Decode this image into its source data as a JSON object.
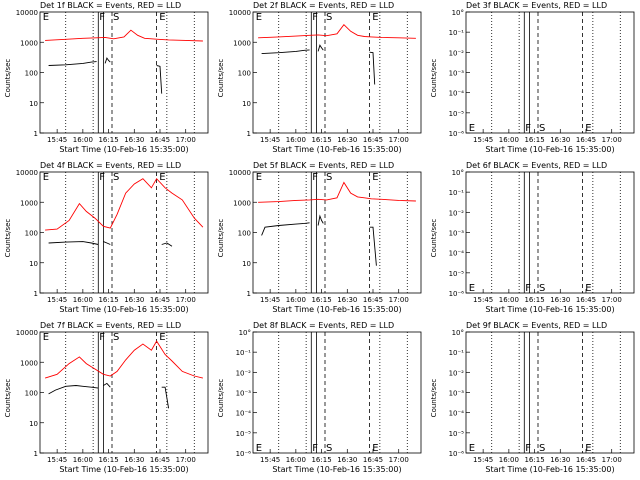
{
  "chart_data": [
    {
      "type": "line",
      "title": "Det 1f BLACK = Events, RED = LLD",
      "xlabel": "Start Time (10-Feb-16 15:35:00)",
      "ylabel": "Counts/sec",
      "yscale": "log",
      "ylim": [
        1,
        10000
      ],
      "ytick_labels": [
        "10000",
        "1000",
        "100",
        "10",
        "1"
      ],
      "xtick_labels": [
        "15:45",
        "16:00",
        "16:15",
        "16:30",
        "16:45",
        "17:00"
      ],
      "xlim": [
        "15:35",
        "17:13"
      ],
      "markers": [
        "E",
        "F",
        "S",
        "E"
      ],
      "series": [
        {
          "name": "RED = LLD",
          "color": "#ff0000",
          "x": [
            "15:38",
            "15:50",
            "16:00",
            "16:08",
            "16:13",
            "16:18",
            "16:24",
            "16:28",
            "16:32",
            "16:36",
            "16:40",
            "16:44",
            "16:50",
            "17:00",
            "17:10"
          ],
          "y": [
            1150,
            1250,
            1350,
            1400,
            1450,
            1300,
            1500,
            2500,
            1700,
            1350,
            1300,
            1250,
            1200,
            1150,
            1100
          ]
        },
        {
          "name": "BLACK = Events",
          "color": "#000000",
          "segments": [
            {
              "x": [
                "15:40",
                "15:50",
                "16:00",
                "16:05",
                "16:08"
              ],
              "y": [
                170,
                180,
                200,
                220,
                230
              ]
            },
            {
              "x": [
                "16:13",
                "16:14",
                "16:15",
                "16:16"
              ],
              "y": [
                200,
                300,
                250,
                220
              ]
            },
            {
              "x": [
                "16:43",
                "16:45",
                "16:46"
              ],
              "y": [
                170,
                160,
                20
              ]
            }
          ]
        }
      ]
    },
    {
      "type": "line",
      "title": "Det 2f BLACK = Events, RED = LLD",
      "xlabel": "Start Time (10-Feb-16 15:35:00)",
      "ylabel": "Counts/sec",
      "yscale": "log",
      "ylim": [
        1,
        10000
      ],
      "ytick_labels": [
        "10000",
        "1000",
        "100",
        "10",
        "1"
      ],
      "xtick_labels": [
        "15:45",
        "16:00",
        "16:15",
        "16:30",
        "16:45",
        "17:00"
      ],
      "xlim": [
        "15:35",
        "17:13"
      ],
      "markers": [
        "E",
        "F",
        "S",
        "E"
      ],
      "series": [
        {
          "name": "RED = LLD",
          "color": "#ff0000",
          "x": [
            "15:38",
            "15:50",
            "16:00",
            "16:08",
            "16:13",
            "16:18",
            "16:24",
            "16:28",
            "16:32",
            "16:36",
            "16:40",
            "16:44",
            "16:50",
            "17:00",
            "17:10"
          ],
          "y": [
            1400,
            1500,
            1600,
            1700,
            1750,
            1650,
            1900,
            3800,
            2300,
            1700,
            1550,
            1500,
            1450,
            1400,
            1350
          ]
        },
        {
          "name": "BLACK = Events",
          "color": "#000000",
          "segments": [
            {
              "x": [
                "15:40",
                "15:50",
                "16:00",
                "16:05",
                "16:08"
              ],
              "y": [
                420,
                450,
                500,
                540,
                560
              ]
            },
            {
              "x": [
                "16:13",
                "16:14",
                "16:15",
                "16:16"
              ],
              "y": [
                500,
                800,
                650,
                550
              ]
            },
            {
              "x": [
                "16:43",
                "16:45",
                "16:46"
              ],
              "y": [
                470,
                450,
                40
              ]
            }
          ]
        }
      ]
    },
    {
      "type": "line",
      "title": "Det 3f BLACK = Events, RED = LLD",
      "xlabel": "Start Time (10-Feb-16 15:35:00)",
      "ylabel": "Counts/sec",
      "yscale": "log",
      "ylim": [
        1,
        1e-06
      ],
      "ytick_labels": [
        "10°",
        "10⁻¹",
        "10⁻²",
        "10⁻³",
        "10⁻⁴",
        "10⁻⁵",
        "10⁻⁶"
      ],
      "xtick_labels": [
        "15:45",
        "16:00",
        "16:15",
        "16:30",
        "16:45",
        "17:00"
      ],
      "xlim": [
        "15:35",
        "17:13"
      ],
      "markers": [
        "E",
        "F",
        "S",
        "E"
      ],
      "series": []
    },
    {
      "type": "line",
      "title": "Det 4f BLACK = Events, RED = LLD",
      "xlabel": "Start Time (10-Feb-16 15:35:00)",
      "ylabel": "Counts/sec",
      "yscale": "log",
      "ylim": [
        1,
        10000
      ],
      "ytick_labels": [
        "10000",
        "1000",
        "100",
        "10",
        "1"
      ],
      "xtick_labels": [
        "15:45",
        "16:00",
        "16:15",
        "16:30",
        "16:45",
        "17:00"
      ],
      "xlim": [
        "15:35",
        "17:13"
      ],
      "markers": [
        "E",
        "F",
        "S",
        "E"
      ],
      "series": [
        {
          "name": "RED = LLD",
          "color": "#ff0000",
          "x": [
            "15:38",
            "15:45",
            "15:52",
            "15:58",
            "16:02",
            "16:07",
            "16:12",
            "16:16",
            "16:20",
            "16:25",
            "16:30",
            "16:35",
            "16:40",
            "16:43",
            "16:48",
            "16:52",
            "16:58",
            "17:05",
            "17:10"
          ],
          "y": [
            120,
            130,
            250,
            900,
            500,
            300,
            160,
            140,
            400,
            2000,
            4000,
            6000,
            3000,
            6000,
            3000,
            2000,
            1200,
            300,
            150
          ]
        },
        {
          "name": "BLACK = Events",
          "color": "#000000",
          "segments": [
            {
              "x": [
                "15:40",
                "15:50",
                "16:00",
                "16:05",
                "16:09"
              ],
              "y": [
                45,
                48,
                50,
                45,
                40
              ]
            },
            {
              "x": [
                "16:12",
                "16:14",
                "16:16"
              ],
              "y": [
                50,
                45,
                40
              ]
            },
            {
              "x": [
                "16:46",
                "16:49",
                "16:52"
              ],
              "y": [
                40,
                45,
                35
              ]
            }
          ]
        }
      ]
    },
    {
      "type": "line",
      "title": "Det 5f BLACK = Events, RED = LLD",
      "xlabel": "Start Time (10-Feb-16 15:35:00)",
      "ylabel": "Counts/sec",
      "yscale": "log",
      "ylim": [
        1,
        10000
      ],
      "ytick_labels": [
        "10000",
        "1000",
        "100",
        "10",
        "1"
      ],
      "xtick_labels": [
        "15:45",
        "16:00",
        "16:15",
        "16:30",
        "16:45",
        "17:00"
      ],
      "xlim": [
        "15:35",
        "17:13"
      ],
      "markers": [
        "E",
        "F",
        "S",
        "E"
      ],
      "series": [
        {
          "name": "RED = LLD",
          "color": "#ff0000",
          "x": [
            "15:38",
            "15:50",
            "16:00",
            "16:08",
            "16:13",
            "16:18",
            "16:24",
            "16:28",
            "16:32",
            "16:36",
            "16:40",
            "16:44",
            "16:50",
            "17:00",
            "17:10"
          ],
          "y": [
            1000,
            1050,
            1150,
            1200,
            1250,
            1200,
            1400,
            4500,
            2000,
            1500,
            1400,
            1300,
            1250,
            1150,
            1100
          ]
        },
        {
          "name": "BLACK = Events",
          "color": "#000000",
          "segments": [
            {
              "x": [
                "15:40",
                "15:42",
                "15:50",
                "16:00",
                "16:05",
                "16:08"
              ],
              "y": [
                80,
                150,
                170,
                190,
                200,
                210
              ]
            },
            {
              "x": [
                "16:13",
                "16:14",
                "16:15",
                "16:16"
              ],
              "y": [
                170,
                350,
                250,
                200
              ]
            },
            {
              "x": [
                "16:43",
                "16:45",
                "16:47"
              ],
              "y": [
                150,
                150,
                8
              ]
            }
          ]
        }
      ]
    },
    {
      "type": "line",
      "title": "Det 6f BLACK = Events, RED = LLD",
      "xlabel": "Start Time (10-Feb-16 15:35:00)",
      "ylabel": "Counts/sec",
      "yscale": "log",
      "ylim": [
        1,
        1e-06
      ],
      "ytick_labels": [
        "10°",
        "10⁻¹",
        "10⁻²",
        "10⁻³",
        "10⁻⁴",
        "10⁻⁵",
        "10⁻⁶"
      ],
      "xtick_labels": [
        "15:45",
        "16:00",
        "16:15",
        "16:30",
        "16:45",
        "17:00"
      ],
      "xlim": [
        "15:35",
        "17:13"
      ],
      "markers": [
        "E",
        "F",
        "S",
        "E"
      ],
      "series": []
    },
    {
      "type": "line",
      "title": "Det 7f BLACK = Events, RED = LLD",
      "xlabel": "Start Time (10-Feb-16 15:35:00)",
      "ylabel": "Counts/sec",
      "yscale": "log",
      "ylim": [
        1,
        10000
      ],
      "ytick_labels": [
        "10000",
        "1000",
        "100",
        "10",
        "1"
      ],
      "xtick_labels": [
        "15:45",
        "16:00",
        "16:15",
        "16:30",
        "16:45",
        "17:00"
      ],
      "xlim": [
        "15:35",
        "17:13"
      ],
      "markers": [
        "E",
        "F",
        "S",
        "E"
      ],
      "series": [
        {
          "name": "RED = LLD",
          "color": "#ff0000",
          "x": [
            "15:38",
            "15:45",
            "15:52",
            "15:58",
            "16:02",
            "16:07",
            "16:12",
            "16:16",
            "16:20",
            "16:25",
            "16:30",
            "16:35",
            "16:40",
            "16:43",
            "16:48",
            "16:52",
            "16:58",
            "17:05",
            "17:10"
          ],
          "y": [
            300,
            400,
            900,
            1500,
            900,
            600,
            400,
            350,
            500,
            1200,
            2500,
            4000,
            2500,
            5000,
            1800,
            1100,
            500,
            350,
            300
          ]
        },
        {
          "name": "BLACK = Events",
          "color": "#000000",
          "segments": [
            {
              "x": [
                "15:40",
                "15:44",
                "15:50",
                "15:56",
                "16:00",
                "16:05",
                "16:09"
              ],
              "y": [
                90,
                120,
                160,
                170,
                160,
                150,
                140
              ]
            },
            {
              "x": [
                "16:12",
                "16:14",
                "16:16"
              ],
              "y": [
                170,
                200,
                150
              ]
            },
            {
              "x": [
                "16:46",
                "16:48",
                "16:50"
              ],
              "y": [
                150,
                150,
                30
              ]
            }
          ]
        }
      ]
    },
    {
      "type": "line",
      "title": "Det 8f BLACK = Events, RED = LLD",
      "xlabel": "Start Time (10-Feb-16 15:35:00)",
      "ylabel": "Counts/sec",
      "yscale": "log",
      "ylim": [
        1,
        1e-06
      ],
      "ytick_labels": [
        "10°",
        "10⁻¹",
        "10⁻²",
        "10⁻³",
        "10⁻⁴",
        "10⁻⁵",
        "10⁻⁶"
      ],
      "xtick_labels": [
        "15:45",
        "16:00",
        "16:15",
        "16:30",
        "16:45",
        "17:00"
      ],
      "xlim": [
        "15:35",
        "17:13"
      ],
      "markers": [
        "E",
        "F",
        "S",
        "E"
      ],
      "series": []
    },
    {
      "type": "line",
      "title": "Det 9f BLACK = Events, RED = LLD",
      "xlabel": "Start Time (10-Feb-16 15:35:00)",
      "ylabel": "Counts/sec",
      "yscale": "log",
      "ylim": [
        1,
        1e-06
      ],
      "ytick_labels": [
        "10°",
        "10⁻¹",
        "10⁻²",
        "10⁻³",
        "10⁻⁴",
        "10⁻⁵",
        "10⁻⁶"
      ],
      "xtick_labels": [
        "15:45",
        "16:00",
        "16:15",
        "16:30",
        "16:45",
        "17:00"
      ],
      "xlim": [
        "15:35",
        "17:13"
      ],
      "markers": [
        "E",
        "F",
        "S",
        "E"
      ],
      "series": []
    }
  ]
}
